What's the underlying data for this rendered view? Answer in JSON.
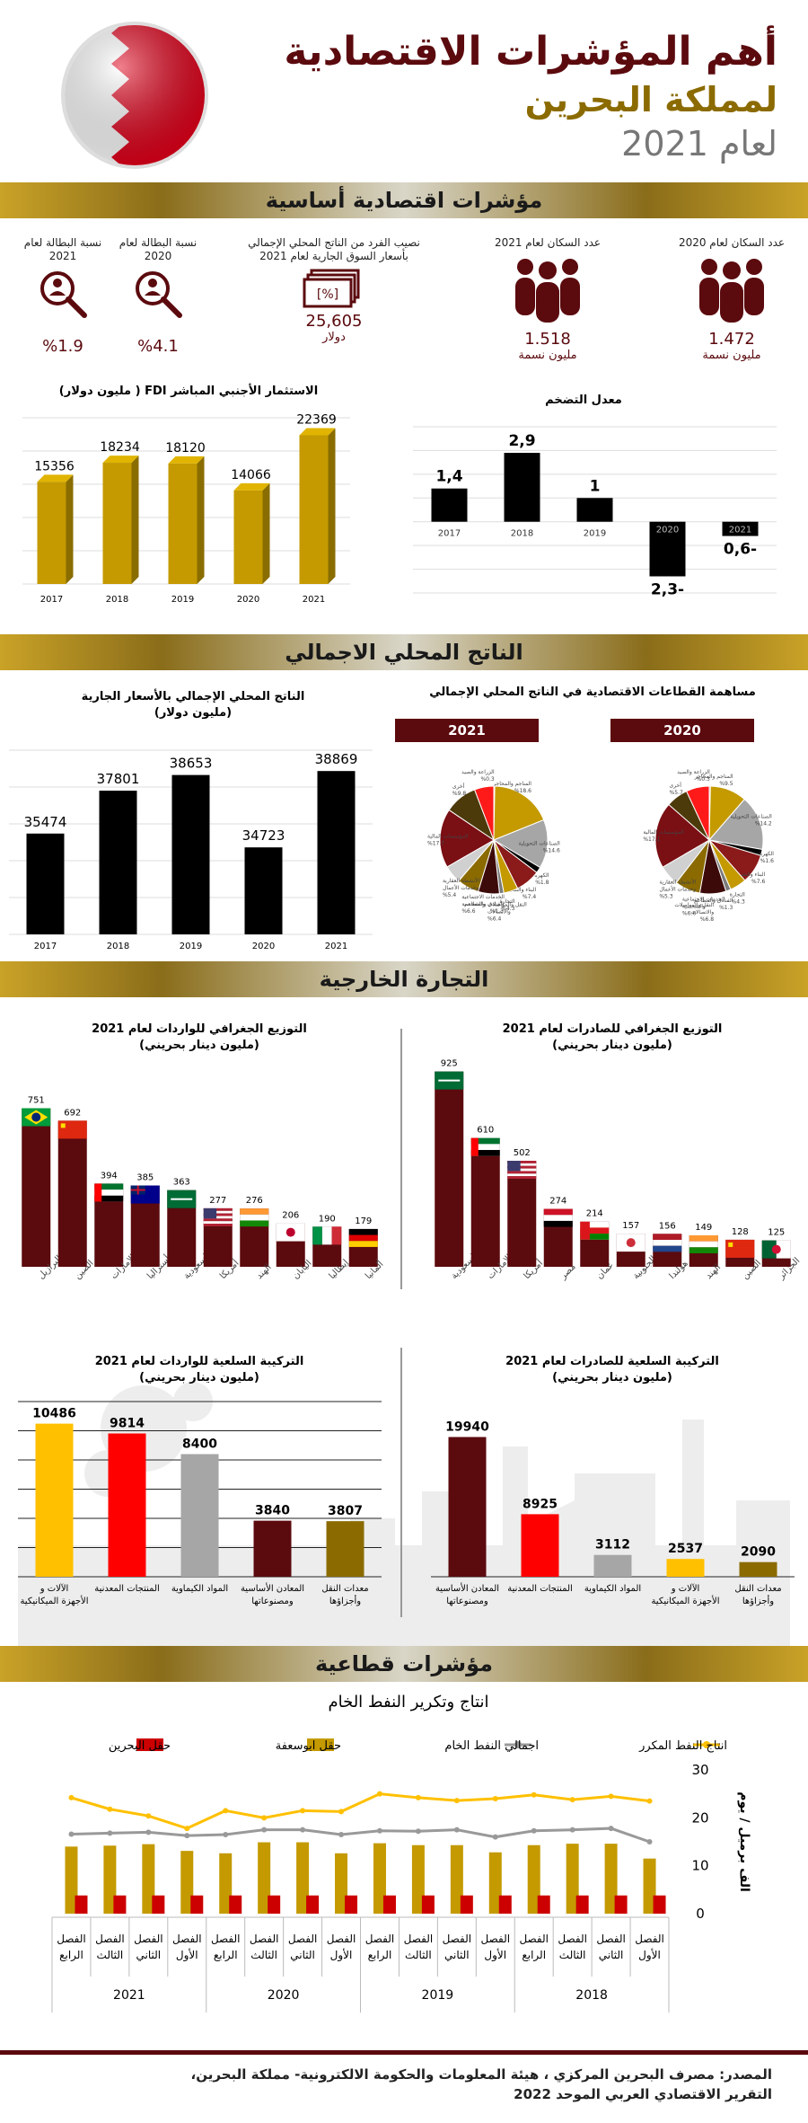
{
  "header": {
    "title_line1": "أهم المؤشرات الاقتصادية",
    "title_line2": "لمملكة البحرين",
    "title_line3": "لعام 2021"
  },
  "colors": {
    "maroon": "#5b0a0e",
    "gold": "#c49a00",
    "grey": "#a6a6a6",
    "black": "#000000",
    "red": "#ff0000",
    "yellow": "#ffc000",
    "olive": "#8b6b00"
  },
  "sections": {
    "basic": "مؤشرات اقتصادية أساسية",
    "gdp": "الناتج المحلي الاجمالي",
    "trade": "التجارة الخارجية",
    "sector": "مؤشرات قطاعية"
  },
  "kpis": {
    "pop2020": {
      "label": "عدد السكان لعام 2020",
      "value": "1.472",
      "unit": "مليون نسمة"
    },
    "pop2021": {
      "label": "عدد السكان لعام 2021",
      "value": "1.518",
      "unit": "مليون نسمة"
    },
    "gdp_pc": {
      "label": "نصيب الفرد من الناتج المحلي الإجمالي بأسعار السوق الجارية لعام 2021",
      "value": "25,605",
      "unit": "دولار"
    },
    "unemp2020": {
      "label": "نسبة البطالة لعام 2020",
      "value": "%4.1"
    },
    "unemp2021": {
      "label": "نسبة البطالة لعام 2021",
      "value": "%1.9"
    }
  },
  "chart_data": [
    {
      "id": "fdi",
      "type": "bar",
      "title": "الاستثمار الأجنبي المباشر FDI ( مليون دولار)",
      "categories": [
        "2017",
        "2018",
        "2019",
        "2020",
        "2021"
      ],
      "values": [
        15356,
        18234,
        18120,
        14066,
        22369
      ],
      "value_labels": [
        "15356",
        "18234",
        "18120",
        "14066",
        "22369"
      ],
      "ylim": [
        0,
        25000
      ],
      "grid": true
    },
    {
      "id": "inflation",
      "type": "bar",
      "title": "معدل التضخم",
      "categories": [
        "2017",
        "2018",
        "2019",
        "2020",
        "2021"
      ],
      "values": [
        1.4,
        2.9,
        1.0,
        -2.3,
        -0.6
      ],
      "value_labels": [
        "1,4",
        "2,9",
        "1",
        "-2,3",
        "-0,6"
      ],
      "ylim": [
        -3,
        4
      ],
      "grid": true
    },
    {
      "id": "gdp",
      "type": "bar",
      "title": "الناتج المحلي الإجمالي بالأسعار الجارية",
      "subtitle": "(مليون دولار)",
      "categories": [
        "2017",
        "2018",
        "2019",
        "2020",
        "2021"
      ],
      "values": [
        35474,
        37801,
        38653,
        34723,
        38869
      ],
      "value_labels": [
        "35474",
        "37801",
        "38653",
        "34723",
        "38869"
      ],
      "ylim": [
        30000,
        40000
      ],
      "grid": true
    },
    {
      "id": "sectors",
      "type": "pie",
      "title": "مساهمة القطاعات الاقتصادية في الناتج المحلي الإجمالي",
      "pies": [
        {
          "name": "2021",
          "slices": [
            {
              "label": "الزراعة والصيد",
              "pct": "%0.3",
              "value": 0.3,
              "color": "#5b0a0e"
            },
            {
              "label": "المناجم والمحاجر",
              "pct": "%18.6",
              "value": 18.6,
              "color": "#c49a00"
            },
            {
              "label": "الصناعات التحويلية",
              "pct": "%14.6",
              "value": 14.6,
              "color": "#a6a6a6"
            },
            {
              "label": "الكهرباء والماء",
              "pct": "%1.8",
              "value": 1.8,
              "color": "#000000"
            },
            {
              "label": "البناء والتشييد",
              "pct": "%7.4",
              "value": 7.4,
              "color": "#8b1a1a"
            },
            {
              "label": "التجارة",
              "pct": "%4.3",
              "value": 4.3,
              "color": "#c49a00"
            },
            {
              "label": "الفنادق والمطاعم",
              "pct": "%1.3",
              "value": 1.3,
              "color": "#7a7a7a"
            },
            {
              "label": "النقل والمواصلات والاتصالات",
              "pct": "%6.4",
              "value": 6.4,
              "color": "#3d0a0a"
            },
            {
              "label": "الخدمات الاجتماعية والشخصية",
              "pct": "%6.6",
              "value": 6.6,
              "color": "#8b6b00"
            },
            {
              "label": "الأنشطة العقارية وخدمات الأعمال",
              "pct": "%5.4",
              "value": 5.4,
              "color": "#d0d0d0"
            },
            {
              "label": "المؤسسات المالية",
              "pct": "%17.7",
              "value": 17.7,
              "color": "#7a0f14"
            },
            {
              "label": "أخرى",
              "pct": "%9.8",
              "value": 9.8,
              "color": "#4d3a0a"
            },
            {
              "label": "",
              "pct": "",
              "value": 5.8,
              "color": "#ff1a1a"
            }
          ]
        },
        {
          "name": "2020",
          "slices": [
            {
              "label": "الزراعة والصيد",
              "pct": "%0.3",
              "value": 0.3,
              "color": "#5b0a0e"
            },
            {
              "label": "المناجم والمحاجر",
              "pct": "%9.5",
              "value": 9.5,
              "color": "#c49a00"
            },
            {
              "label": "الصناعات التحويلية",
              "pct": "%14.2",
              "value": 14.2,
              "color": "#a6a6a6"
            },
            {
              "label": "الكهرباء والماء",
              "pct": "%1.6",
              "value": 1.6,
              "color": "#000000"
            },
            {
              "label": "البناء والتشييد",
              "pct": "%7.6",
              "value": 7.6,
              "color": "#8b1a1a"
            },
            {
              "label": "التجارة",
              "pct": "%4.3",
              "value": 4.3,
              "color": "#c49a00"
            },
            {
              "label": "الفنادق والمطاعم",
              "pct": "%1.3",
              "value": 1.3,
              "color": "#7a7a7a"
            },
            {
              "label": "النقل والمواصلات والاتصالات",
              "pct": "%6.8",
              "value": 6.8,
              "color": "#3d0a0a"
            },
            {
              "label": "الخدمات الاجتماعية والشخصية",
              "pct": "%6.6",
              "value": 6.6,
              "color": "#8b6b00"
            },
            {
              "label": "الأنشطة العقارية وخدمات الأعمال",
              "pct": "%5.3",
              "value": 5.3,
              "color": "#d0d0d0"
            },
            {
              "label": "المؤسسات المالية",
              "pct": "%17.1",
              "value": 17.1,
              "color": "#7a0f14"
            },
            {
              "label": "أخرى",
              "pct": "%5.7",
              "value": 5.7,
              "color": "#4d3a0a"
            },
            {
              "label": "",
              "pct": "",
              "value": 6.0,
              "color": "#ff1a1a"
            }
          ]
        }
      ]
    },
    {
      "id": "exports_geo",
      "type": "bar",
      "title": "التوزيع الجغرافي للصادرات لعام 2021",
      "subtitle": "(مليون دينار بحريني)",
      "categories": [
        "السعودية",
        "الإمارات",
        "أمريكا",
        "مصر",
        "عمان",
        "كوريا الجنوبية",
        "هولندا",
        "الهند",
        "الصين",
        "الجزائر"
      ],
      "values": [
        925,
        610,
        502,
        274,
        214,
        157,
        156,
        149,
        128,
        125
      ],
      "value_labels": [
        "925",
        "610",
        "502",
        "274",
        "214",
        "157",
        "156",
        "149",
        "128",
        "125"
      ],
      "ylim": [
        0,
        1000
      ]
    },
    {
      "id": "imports_geo",
      "type": "bar",
      "title": "التوزيع الجغرافي للواردات لعام 2021",
      "subtitle": "(مليون دينار بحريني)",
      "categories": [
        "البرازيل",
        "الصين",
        "الإمارات",
        "أستراليا",
        "السعودية",
        "أمريكا",
        "الهند",
        "اليابان",
        "إيطاليا",
        "ألمانيا"
      ],
      "values": [
        751,
        692,
        394,
        385,
        363,
        277,
        276,
        206,
        190,
        179
      ],
      "value_labels": [
        "751",
        "692",
        "394",
        "385",
        "363",
        "277",
        "276",
        "206",
        "190",
        "179"
      ],
      "ylim": [
        0,
        1000
      ]
    },
    {
      "id": "exports_comm",
      "type": "bar",
      "title": "التركيبة السلعية للصادرات لعام 2021",
      "subtitle": "(مليون دينار بحريني)",
      "categories": [
        "المعادن الأساسية ومصنوعاتها",
        "المنتجات المعدنية",
        "المواد الكيماوية",
        "الآلات و الأجهزة الميكانيكية",
        "معدات النقل وأجزاؤها"
      ],
      "values": [
        19940,
        8925,
        3112,
        2537,
        2090
      ],
      "value_labels": [
        "19940",
        "8925",
        "3112",
        "2537",
        "2090"
      ],
      "colors": [
        "#5b0a0e",
        "#ff0000",
        "#a6a6a6",
        "#ffc000",
        "#8b6b00"
      ],
      "ylim": [
        0,
        25000
      ]
    },
    {
      "id": "imports_comm",
      "type": "bar",
      "title": "التركيبة السلعية للواردات لعام 2021",
      "subtitle": "(مليون دينار بحريني)",
      "categories": [
        "الآلات و الأجهزة الميكانيكية",
        "المنتجات المعدنية",
        "المواد الكيماوية",
        "المعادن الأساسية ومصنوعاتها",
        "معدات النقل وأجزاؤها"
      ],
      "values": [
        10486,
        9814,
        8400,
        3840,
        3807
      ],
      "value_labels": [
        "10486",
        "9814",
        "8400",
        "3840",
        "3807"
      ],
      "colors": [
        "#ffc000",
        "#ff0000",
        "#a6a6a6",
        "#5b0a0e",
        "#8b6b00"
      ],
      "ylim": [
        0,
        12000
      ],
      "grid": true
    },
    {
      "id": "oil",
      "type": "bar",
      "title": "انتاج وتكرير النفط الخام",
      "ylabel": "الف برميل / يوم",
      "ylim": [
        0,
        30
      ],
      "yticks": [
        "0",
        "10",
        "20",
        "30"
      ],
      "quarters": [
        "الفصل الأول",
        "الفصل الثاني",
        "الفصل الثالث",
        "الفصل الرابع",
        "الفصل الأول",
        "الفصل الثاني",
        "الفصل الثالث",
        "الفصل الرابع",
        "الفصل الأول",
        "الفصل الثاني",
        "الفصل الثالث",
        "الفصل الرابع",
        "الفصل الأول",
        "الفصل الثاني",
        "الفصل الثالث",
        "الفصل الرابع"
      ],
      "years": [
        "2018",
        "2019",
        "2020",
        "2021"
      ],
      "series": [
        {
          "name": "انتاج النفط المكرر",
          "kind": "line",
          "color": "#ffc000",
          "values": [
            23.5,
            24.5,
            23.8,
            24.8,
            24.0,
            23.6,
            24.2,
            25.0,
            21.3,
            21.5,
            20.0,
            21.5,
            17.8,
            20.4,
            21.8,
            24.2
          ]
        },
        {
          "name": "اجمالي النفط الخام",
          "kind": "line",
          "color": "#999999",
          "values": [
            15.0,
            17.8,
            17.5,
            17.3,
            16.0,
            17.5,
            17.2,
            17.3,
            16.5,
            17.5,
            17.5,
            16.5,
            16.3,
            17.0,
            16.8,
            16.6
          ]
        },
        {
          "name": "حقل ابوسعفة",
          "kind": "bar",
          "color": "#c49a00",
          "values": [
            11.5,
            14.6,
            14.6,
            14.3,
            12.8,
            14.3,
            14.3,
            14.7,
            12.6,
            14.9,
            14.9,
            12.6,
            13.1,
            14.5,
            14.2,
            14.0
          ]
        },
        {
          "name": "حقل البحرين",
          "kind": "bar",
          "color": "#cc0000",
          "values": [
            3.8,
            3.8,
            3.8,
            3.8,
            3.8,
            3.8,
            3.8,
            3.8,
            3.8,
            3.8,
            3.8,
            3.8,
            3.8,
            3.8,
            3.8,
            3.8
          ]
        }
      ]
    }
  ],
  "footer": {
    "line1": "المصدر: مصرف البحرين المركزي ، هيئة المعلومات والحكومة الالكترونية- مملكة البحرين،",
    "line2": "التقرير الاقتصادي العربي الموحد 2022"
  }
}
